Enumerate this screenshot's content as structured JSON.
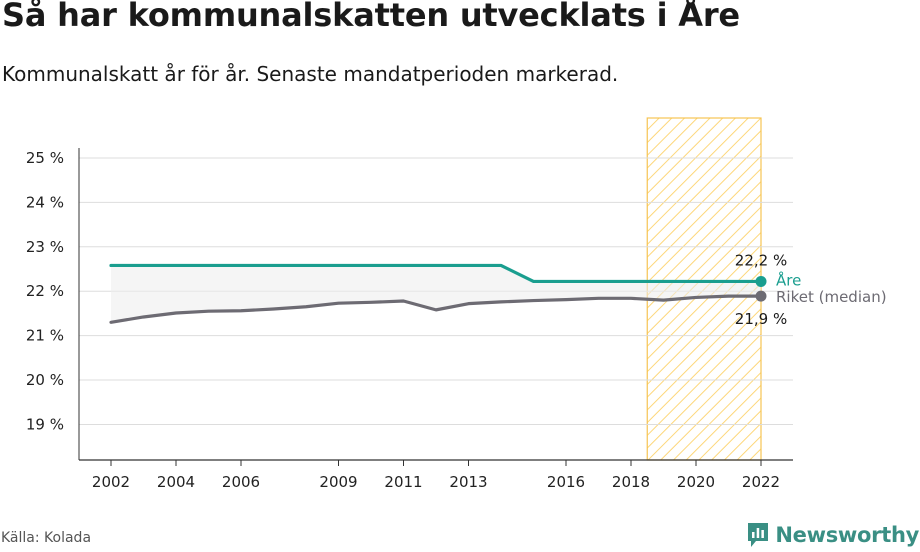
{
  "header": {
    "title": "Så har kommunalskatten utvecklats i Åre",
    "subtitle": "Kommunalskatt år för år. Senaste mandatperioden markerad."
  },
  "footer": {
    "source": "Källa: Kolada",
    "brand": "Newsworthy",
    "brand_icon": "newsworthy-logo-icon"
  },
  "colors": {
    "are": "#1a9e8f",
    "riket": "#6d6b73",
    "highlight_fill": "#fdd77a",
    "highlight_stroke": "#f6c453",
    "grid": "#dddddd",
    "brand": "#3a8f84"
  },
  "chart_data": {
    "type": "line",
    "x": [
      2002,
      2003,
      2004,
      2005,
      2006,
      2007,
      2008,
      2009,
      2010,
      2011,
      2012,
      2013,
      2014,
      2015,
      2016,
      2017,
      2018,
      2019,
      2020,
      2021,
      2022
    ],
    "x_ticks": [
      2002,
      2004,
      2006,
      2009,
      2011,
      2013,
      2016,
      2018,
      2020,
      2022
    ],
    "ylim": [
      18.2,
      25.9
    ],
    "y_ticks": [
      {
        "value": 19,
        "label": "19 %"
      },
      {
        "value": 20,
        "label": "20 %"
      },
      {
        "value": 21,
        "label": "21 %"
      },
      {
        "value": 22,
        "label": "22 %"
      },
      {
        "value": 23,
        "label": "23 %"
      },
      {
        "value": 24,
        "label": "24 %"
      },
      {
        "value": 25,
        "label": "25 %"
      }
    ],
    "grid": true,
    "highlight": {
      "from": 2018.5,
      "to": 2022
    },
    "series": [
      {
        "name": "Åre",
        "values": [
          22.58,
          22.58,
          22.58,
          22.58,
          22.58,
          22.58,
          22.58,
          22.58,
          22.58,
          22.58,
          22.58,
          22.58,
          22.58,
          22.22,
          22.22,
          22.22,
          22.22,
          22.22,
          22.22,
          22.22,
          22.22
        ],
        "end_value_label": "22,2 %"
      },
      {
        "name": "Riket (median)",
        "values": [
          21.3,
          21.42,
          21.51,
          21.55,
          21.56,
          21.6,
          21.65,
          21.73,
          21.75,
          21.78,
          21.58,
          21.72,
          21.76,
          21.79,
          21.81,
          21.84,
          21.84,
          21.8,
          21.86,
          21.89,
          21.89
        ],
        "end_value_label": "21,9 %"
      }
    ]
  }
}
